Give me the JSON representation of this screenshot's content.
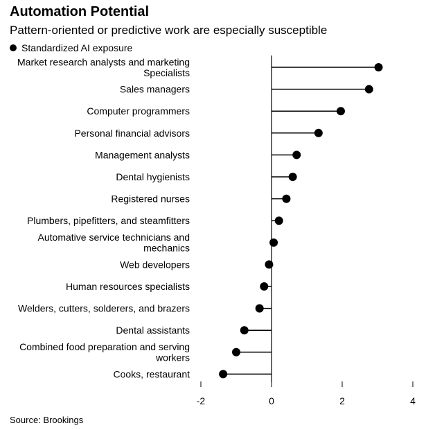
{
  "chart_data": {
    "type": "lollipop",
    "title": "Automation Potential",
    "subtitle": "Pattern-oriented or predictive work are especially susceptible",
    "legend": [
      "Standardized AI exposure"
    ],
    "source": "Source: Brookings",
    "xlim": [
      -2,
      4
    ],
    "x_ticks": [
      -2,
      0,
      2,
      4
    ],
    "grid": false,
    "categories": [
      [
        "Market research analysts and marketing",
        "Specialists"
      ],
      [
        "Sales managers"
      ],
      [
        "Computer programmers"
      ],
      [
        "Personal financial advisors"
      ],
      [
        "Management analysts"
      ],
      [
        "Dental hygienists"
      ],
      [
        "Registered nurses"
      ],
      [
        "Plumbers, pipefitters, and steamfitters"
      ],
      [
        "Automative service technicians and",
        "mechanics"
      ],
      [
        "Web developers"
      ],
      [
        "Human resources specialists"
      ],
      [
        "Welders, cutters, solderers, and brazers"
      ],
      [
        "Dental assistants"
      ],
      [
        "Combined food preparation and serving",
        "workers"
      ],
      [
        "Cooks, restaurant"
      ]
    ],
    "series": [
      {
        "name": "Standardized AI exposure",
        "values": [
          3.03,
          2.76,
          1.96,
          1.33,
          0.71,
          0.6,
          0.42,
          0.21,
          0.06,
          -0.07,
          -0.21,
          -0.34,
          -0.77,
          -1.0,
          -1.37
        ]
      }
    ],
    "colors": {
      "marker": "#000000",
      "axis": "#000000"
    }
  }
}
